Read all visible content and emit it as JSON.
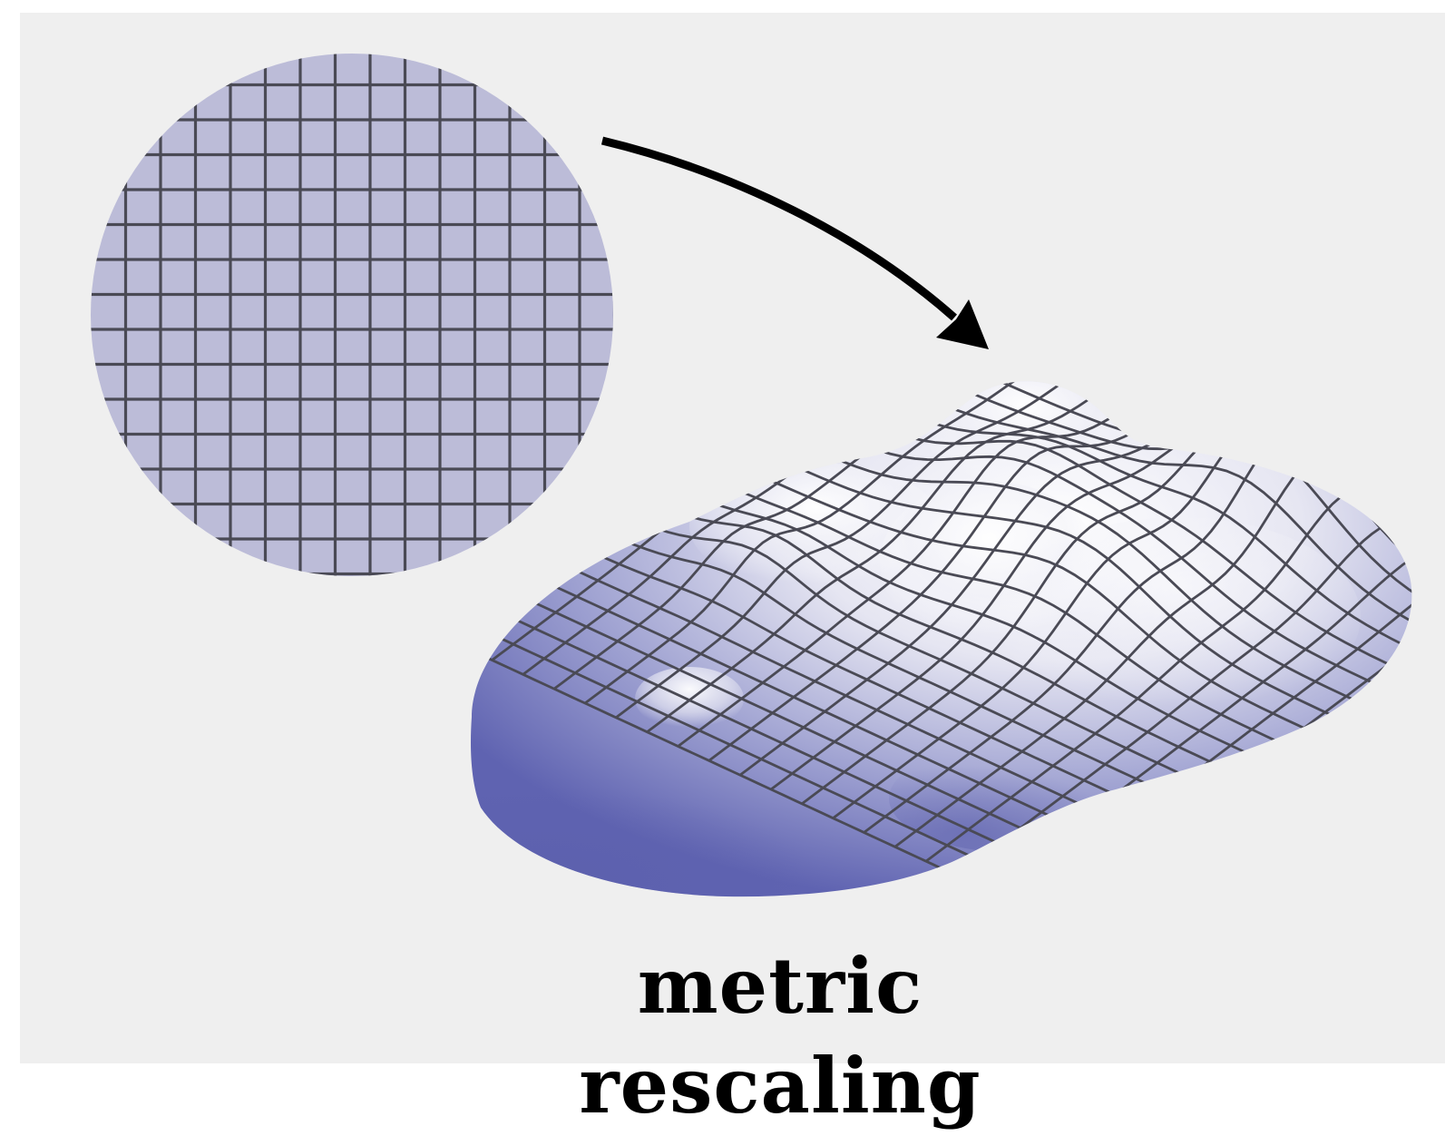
{
  "caption": "metric rescaling",
  "colors": {
    "background": "#efefef",
    "flat_disk_fill": "#bcbcd8",
    "grid_line": "#4a4a55",
    "surface_light": "#ffffff",
    "surface_dark": "#5e62b0",
    "arrow": "#000000"
  },
  "elements": {
    "flat_disk": "flat-grid-disk",
    "arrow": "mapping-arrow",
    "surface": "curved-grid-surface"
  }
}
